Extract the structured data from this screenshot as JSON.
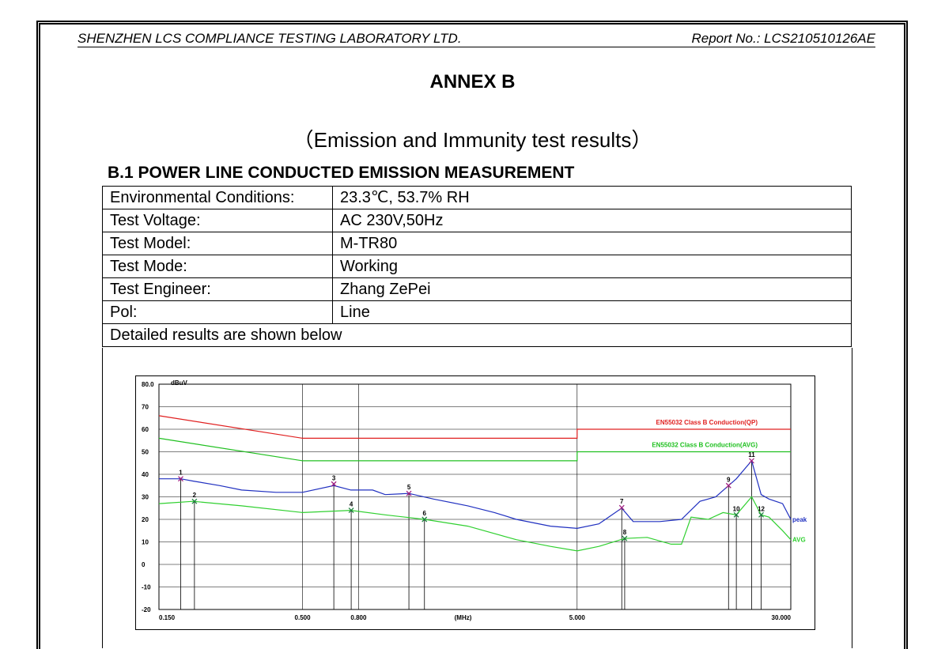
{
  "header": {
    "company": "SHENZHEN LCS COMPLIANCE TESTING LABORATORY LTD.",
    "report_no": "Report No.: LCS210510126AE"
  },
  "title": "ANNEX B",
  "subtitle": "（Emission and Immunity test results）",
  "section": "B.1 POWER LINE CONDUCTED EMISSION MEASUREMENT",
  "table": {
    "rows": [
      [
        "Environmental Conditions:",
        "23.3℃, 53.7% RH"
      ],
      [
        "Test Voltage:",
        "AC 230V,50Hz"
      ],
      [
        "Test Model:",
        "M-TR80"
      ],
      [
        "Test Mode:",
        "Working"
      ],
      [
        "Test Engineer:",
        "Zhang ZePei"
      ],
      [
        "Pol:",
        "Line"
      ]
    ],
    "note": "Detailed results are shown below"
  },
  "chart_data": {
    "type": "line",
    "x_scale": "log",
    "y_unit": "dBuV",
    "x_label": "(MHz)",
    "xlim": [
      0.15,
      30
    ],
    "ylim": [
      -20,
      80
    ],
    "xticks": [
      {
        "value": 0.15,
        "label": "0.150"
      },
      {
        "value": 0.5,
        "label": "0.500"
      },
      {
        "value": 0.8,
        "label": "0.800"
      },
      {
        "value": 5,
        "label": "5.000"
      },
      {
        "value": 30,
        "label": "30.000"
      }
    ],
    "yticks": [
      {
        "value": 80,
        "label": "80.0"
      },
      70,
      60,
      50,
      40,
      30,
      20,
      10,
      0,
      -10,
      -20
    ],
    "grid": true,
    "series": [
      {
        "name": "EN55032 Class B Conduction(QP)",
        "color": "#e02020",
        "label_at": "above",
        "x": [
          0.15,
          0.5,
          5,
          5,
          30
        ],
        "values": [
          66,
          56,
          56,
          60,
          60
        ]
      },
      {
        "name": "EN55032 Class B Conduction(AVG)",
        "color": "#20c020",
        "label_at": "above",
        "x": [
          0.15,
          0.5,
          5,
          5,
          30
        ],
        "values": [
          56,
          46,
          46,
          50,
          50
        ]
      },
      {
        "name": "peak",
        "color": "#2030c0",
        "label_at": "right",
        "x": [
          0.15,
          0.18,
          0.2,
          0.25,
          0.3,
          0.4,
          0.5,
          0.65,
          0.75,
          0.9,
          1.0,
          1.22,
          1.5,
          2,
          2.5,
          3,
          4,
          5,
          6,
          7.27,
          8,
          10,
          12,
          14,
          16,
          17.8,
          19,
          21.6,
          23.4,
          25,
          28,
          30
        ],
        "values": [
          38,
          38,
          37,
          35,
          33,
          32,
          32,
          35,
          33,
          33,
          31,
          31.5,
          29,
          26,
          23,
          20,
          17,
          16,
          18,
          25,
          19,
          19,
          20,
          28,
          30,
          35,
          38,
          46,
          31,
          29,
          27,
          20
        ]
      },
      {
        "name": "AVG",
        "color": "#30d030",
        "label_at": "right",
        "x": [
          0.15,
          0.2,
          0.3,
          0.5,
          0.75,
          1,
          1.39,
          2,
          3,
          4,
          5,
          6,
          7.45,
          9,
          11,
          12,
          13,
          15,
          17,
          19,
          21.6,
          23.4,
          25,
          28,
          30
        ],
        "values": [
          27,
          28,
          26,
          23,
          24,
          22,
          20,
          17,
          11,
          8,
          6,
          8,
          11.5,
          12,
          9,
          9,
          21,
          20,
          23,
          22,
          30,
          22,
          21,
          15,
          11
        ]
      }
    ],
    "markers": [
      {
        "label": "1",
        "x": 0.18,
        "y": 38,
        "color": "#a02080"
      },
      {
        "label": "2",
        "x": 0.202,
        "y": 28,
        "color": "#208040"
      },
      {
        "label": "3",
        "x": 0.65,
        "y": 35.7,
        "color": "#a02080"
      },
      {
        "label": "4",
        "x": 0.752,
        "y": 24,
        "color": "#208040"
      },
      {
        "label": "5",
        "x": 1.22,
        "y": 31.5,
        "color": "#a02080"
      },
      {
        "label": "6",
        "x": 1.39,
        "y": 20,
        "color": "#208040"
      },
      {
        "label": "7",
        "x": 7.27,
        "y": 25.2,
        "color": "#a02080"
      },
      {
        "label": "8",
        "x": 7.45,
        "y": 11.5,
        "color": "#208040"
      },
      {
        "label": "9",
        "x": 17.8,
        "y": 35,
        "color": "#a02080"
      },
      {
        "label": "10",
        "x": 19.0,
        "y": 22,
        "color": "#208040"
      },
      {
        "label": "11",
        "x": 21.6,
        "y": 46,
        "color": "#a02080"
      },
      {
        "label": "12",
        "x": 23.4,
        "y": 22,
        "color": "#208040"
      }
    ]
  }
}
